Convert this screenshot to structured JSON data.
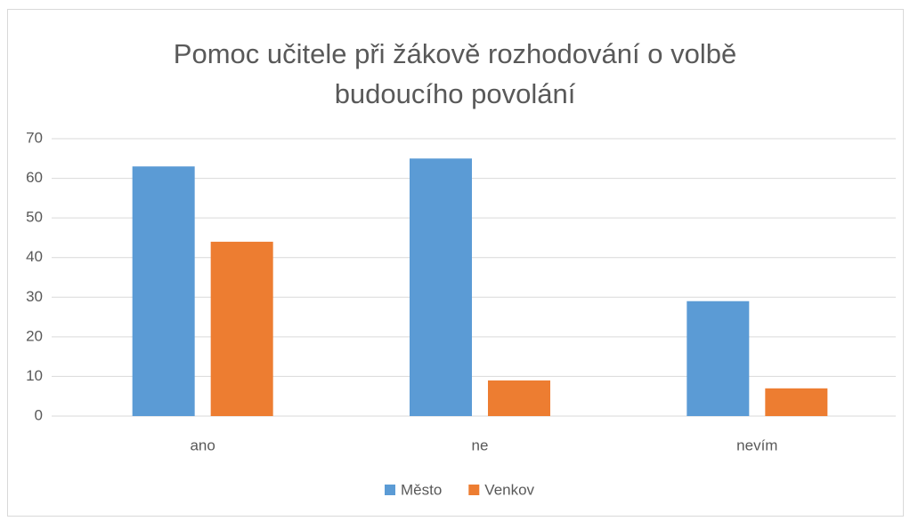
{
  "chart_data": {
    "type": "bar",
    "title": "Pomoc učitele při žákově rozhodování o volbě budoucího povolání",
    "categories": [
      "ano",
      "ne",
      "nevím"
    ],
    "series": [
      {
        "name": "Město",
        "color": "#5b9bd5",
        "values": [
          63,
          65,
          29
        ]
      },
      {
        "name": "Venkov",
        "color": "#ed7d31",
        "values": [
          44,
          9,
          7
        ]
      }
    ],
    "ylim": [
      0,
      70
    ],
    "yticks": [
      0,
      10,
      20,
      30,
      40,
      50,
      60,
      70
    ],
    "grid": true,
    "legend": "bottom"
  }
}
